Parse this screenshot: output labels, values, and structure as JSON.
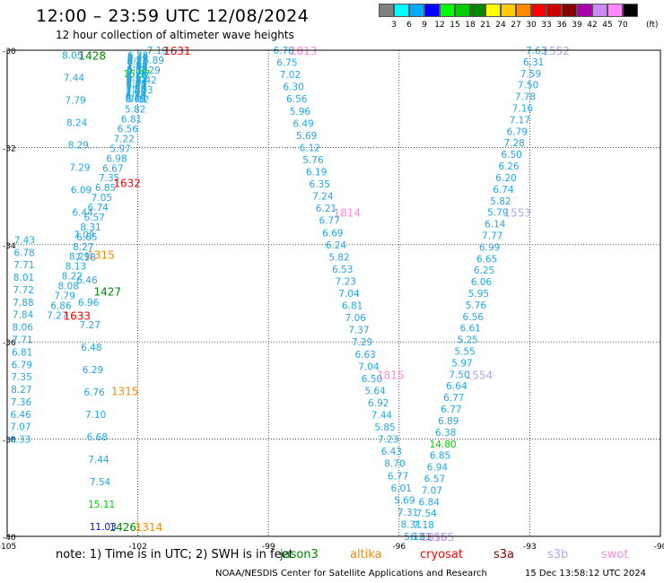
{
  "title": "12:00 – 23:59 UTC 12/08/2024",
  "subtitle": "12 hour collection of altimeter wave heights",
  "legend": {
    "colors": [
      "#7f7f7f",
      "#00ffff",
      "#00aaff",
      "#0000ff",
      "#00ff00",
      "#00cc00",
      "#008800",
      "#ffff00",
      "#ffcc00",
      "#ff8800",
      "#ff0000",
      "#cc0000",
      "#880000",
      "#aa00aa",
      "#cc88ff",
      "#ff88ff",
      "#000000"
    ],
    "labels": [
      "3",
      "6",
      "9",
      "12",
      "15",
      "18",
      "21",
      "24",
      "27",
      "30",
      "33",
      "36",
      "39",
      "42",
      "45",
      "70"
    ],
    "unit": "(ft)"
  },
  "note": "note: 1) Time is in UTC; 2) SWH is in feet",
  "satellites": [
    {
      "name": "jason3",
      "color": "#008800"
    },
    {
      "name": "altika",
      "color": "#ff8800"
    },
    {
      "name": "cryosat",
      "color": "#ff0000"
    },
    {
      "name": "s3a",
      "color": "#880000"
    },
    {
      "name": "s3b",
      "color": "#aaaaee"
    },
    {
      "name": "swot",
      "color": "#ff88dd"
    }
  ],
  "footer": "NOAA/NESDIS Center for Satellite Applications and Research",
  "footer_timestamp": "15 Dec 13:58:12 UTC 2024",
  "chart_data": {
    "type": "scatter",
    "xlim": [
      -105,
      -90
    ],
    "ylim": [
      -40,
      -30
    ],
    "x_ticks": [
      -105,
      -102,
      -99,
      -96,
      -93,
      -90
    ],
    "y_ticks": [
      -30,
      -32,
      -34,
      -36,
      -38,
      -40
    ],
    "grid": true,
    "tracks": [
      {
        "sat": "cryosat",
        "start": [
          -101.55,
          -30
        ],
        "end": [
          -103.85,
          -35.45
        ],
        "labels": [
          "1631",
          "1632",
          "1633"
        ],
        "values": [
          "7.19",
          "5.89",
          "7.29",
          "8.42",
          "7.03",
          "7.12",
          "5.82",
          "6.81",
          "6.56",
          "7.22",
          "5.97",
          "6.98",
          "6.67",
          "7.35",
          "6.85",
          "7.05",
          "6.74",
          "6.57",
          "8.31",
          "6.65",
          "8.27",
          "8.29",
          "8.13",
          "8.22",
          "8.08",
          "7.79",
          "6.86",
          "7.27"
        ]
      },
      {
        "sat": "jason3",
        "start": [
          -103.5,
          -30.1
        ],
        "end": [
          -102.8,
          -39.8
        ],
        "labels": [
          "1428",
          "1427",
          "1426"
        ],
        "values": [
          "8.05",
          "7.44",
          "7.79",
          "8.24",
          "8.29",
          "7.29",
          "6.09",
          "6.44",
          "7.09",
          "7.18",
          "6.46",
          "6.96",
          "7.27",
          "6.48",
          "6.29",
          "6.76",
          "7.10",
          "6.68",
          "7.44",
          "7.54",
          "15.11",
          "11.03"
        ]
      },
      {
        "sat": "altika",
        "start": [
          -103.3,
          -34.2
        ],
        "end": [
          -102.2,
          -39.8
        ],
        "labels": [
          "1315",
          "1315",
          "1314"
        ],
        "values": []
      },
      {
        "sat": "swot",
        "start": [
          -98.65,
          -30
        ],
        "end": [
          -95.65,
          -40
        ],
        "labels": [
          "1813",
          "1814",
          "1815",
          "1816"
        ],
        "values": [
          "6.78",
          "6.75",
          "7.02",
          "6.30",
          "6.56",
          "5.96",
          "6.49",
          "5.69",
          "6.12",
          "5.76",
          "6.19",
          "6.35",
          "7.24",
          "6.21",
          "6.77",
          "6.69",
          "6.24",
          "5.82",
          "6.53",
          "7.23",
          "7.04",
          "6.81",
          "7.06",
          "7.37",
          "7.29",
          "6.63",
          "7.04",
          "6.50",
          "5.64",
          "6.92",
          "7.44",
          "5.85",
          "7.23",
          "6.43",
          "8.70",
          "6.77",
          "6.01",
          "5.69",
          "7.31",
          "8.31",
          "5.12"
        ]
      },
      {
        "sat": "s3b",
        "start": [
          -92.85,
          -30
        ],
        "end": [
          -95.5,
          -40
        ],
        "labels": [
          "1552",
          "1553",
          "1554",
          "1555"
        ],
        "values": [
          "7.63",
          "6.31",
          "7.59",
          "7.50",
          "7.78",
          "7.16",
          "7.17",
          "6.79",
          "7.28",
          "6.50",
          "6.26",
          "6.20",
          "6.74",
          "5.82",
          "5.79",
          "6.14",
          "7.77",
          "6.99",
          "6.65",
          "6.25",
          "6.06",
          "5.95",
          "5.76",
          "6.56",
          "6.61",
          "5.25",
          "5.55",
          "5.97",
          "7.50",
          "6.64",
          "6.77",
          "6.77",
          "6.89",
          "6.38",
          "14.80",
          "6.85",
          "6.94",
          "6.57",
          "7.07",
          "6.84",
          "7.54",
          "7.18",
          "6.51"
        ]
      },
      {
        "sat": "s3a",
        "start": [
          -104.6,
          -33.9
        ],
        "end": [
          -104.7,
          -38.0
        ],
        "labels": [],
        "values": [
          "7.43",
          "6.78",
          "7.71",
          "8.01",
          "7.72",
          "7.88",
          "7.84",
          "8.06",
          "7.71",
          "6.81",
          "6.79",
          "7.35",
          "8.27",
          "7.36",
          "6.46",
          "7.07",
          "6.33"
        ]
      },
      {
        "sat": "jason3",
        "start": [
          -102.0,
          -30.1
        ],
        "end": [
          -102.05,
          -31.0
        ],
        "labels": [],
        "values": [
          "6.78",
          "6.76",
          "7.09",
          "6.71",
          "6.41",
          "7.62",
          "7.69",
          "7.12",
          "6.99",
          "6.34",
          "7.04",
          "15.97",
          "8.16",
          "6.59",
          "6.11",
          "6.23",
          "7.84",
          "6.41",
          "7.70",
          "7.44",
          "7.78",
          "7.77",
          "7.97",
          "7.79",
          "8.24",
          "8.29",
          "8.09"
        ]
      }
    ]
  }
}
